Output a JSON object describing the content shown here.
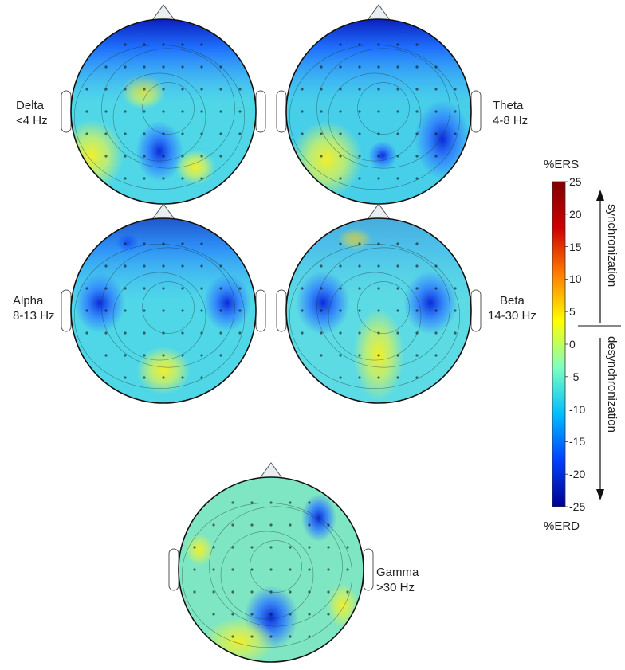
{
  "bands": [
    {
      "name": "Delta",
      "range": "<4 Hz"
    },
    {
      "name": "Theta",
      "range": "4-8 Hz"
    },
    {
      "name": "Alpha",
      "range": "8-13 Hz"
    },
    {
      "name": "Beta",
      "range": "14-30 Hz"
    },
    {
      "name": "Gamma",
      "range": ">30 Hz"
    }
  ],
  "colorbar": {
    "top_label": "%ERS",
    "bottom_label": "%ERD",
    "ticks": [
      "25",
      "20",
      "15",
      "10",
      "5",
      "0",
      "-5",
      "-10",
      "-15",
      "-20",
      "-25"
    ],
    "upper_annotation": "synchronization",
    "lower_annotation": "desynchronization",
    "colors": [
      "#00008f",
      "#0040ff",
      "#00bfff",
      "#7fffbf",
      "#ffff00",
      "#ff8000",
      "#d00000",
      "#800000"
    ]
  }
}
